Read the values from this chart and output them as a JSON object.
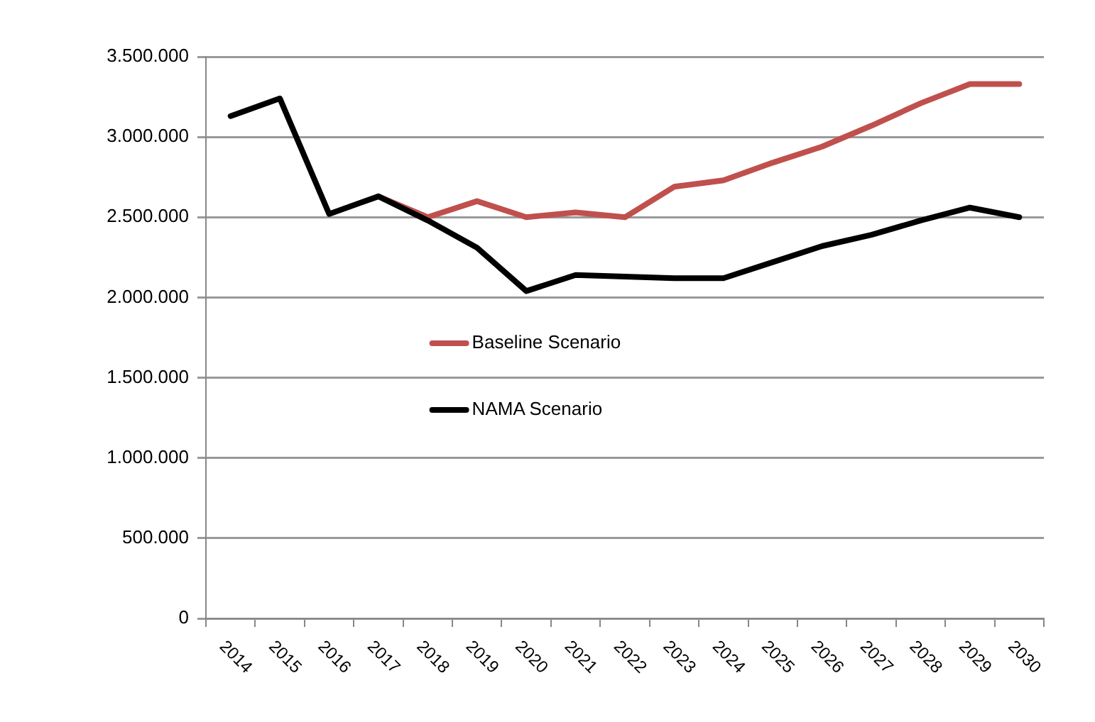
{
  "chart_data": {
    "type": "line",
    "categories": [
      "2014",
      "2015",
      "2016",
      "2017",
      "2018",
      "2019",
      "2020",
      "2021",
      "2022",
      "2023",
      "2024",
      "2025",
      "2026",
      "2027",
      "2028",
      "2029",
      "2030"
    ],
    "series": [
      {
        "name": "Baseline Scenario",
        "color": "#c0504d",
        "values": [
          null,
          null,
          null,
          2630000,
          2500000,
          2600000,
          2500000,
          2530000,
          2500000,
          2690000,
          2730000,
          2840000,
          2940000,
          3070000,
          3210000,
          3330000,
          3330000
        ]
      },
      {
        "name": "NAMA Scenario",
        "color": "#000000",
        "values": [
          3130000,
          3240000,
          2520000,
          2630000,
          2480000,
          2310000,
          2040000,
          2140000,
          2130000,
          2120000,
          2120000,
          2220000,
          2320000,
          2390000,
          2480000,
          2560000,
          2500000
        ]
      }
    ],
    "ylim": [
      0,
      3500000
    ],
    "yticks": [
      {
        "value": 0,
        "label": "0"
      },
      {
        "value": 500000,
        "label": "500.000"
      },
      {
        "value": 1000000,
        "label": "1.000.000"
      },
      {
        "value": 1500000,
        "label": "1.500.000"
      },
      {
        "value": 2000000,
        "label": "2.000.000"
      },
      {
        "value": 2500000,
        "label": "2.500.000"
      },
      {
        "value": 3000000,
        "label": "3.000.000"
      },
      {
        "value": 3500000,
        "label": "3.500.000"
      }
    ],
    "grid": "y",
    "legend": "center left",
    "marker": "none",
    "line_style": "solid"
  }
}
